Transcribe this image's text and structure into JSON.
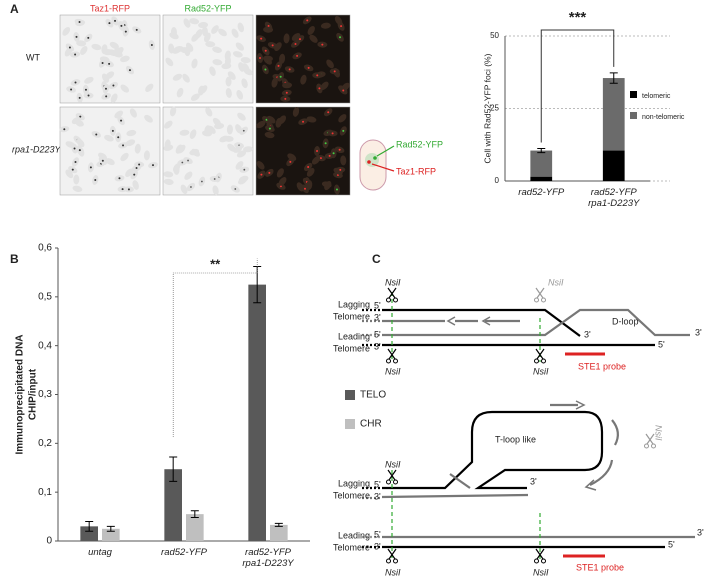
{
  "figure": {
    "panel_labels": [
      "A",
      "B",
      "C"
    ]
  },
  "microscopy": {
    "columns": [
      "Taz1-RFP",
      "Rad52-YFP"
    ],
    "rows": [
      "WT",
      "rpa1-D223Y"
    ],
    "cell_labels": [
      "Rad52-YFP",
      "Taz1-RFP"
    ]
  },
  "chart_data": [
    {
      "type": "bar",
      "stacked": true,
      "ylabel": "Cell with Rad52-YFP foci (%)",
      "categories": [
        "rad52-YFP",
        "rad52-YFP\nrpa1-D223Y"
      ],
      "series": [
        {
          "name": "telomeric",
          "color": "#000000",
          "values": [
            1.5,
            10.5
          ]
        },
        {
          "name": "non-telomeric",
          "color": "#6b6b6b",
          "values": [
            9,
            25
          ],
          "errors": [
            0.7,
            1.8
          ]
        }
      ],
      "ylim": [
        0,
        50
      ],
      "yticks": [
        0,
        25,
        50
      ],
      "grid": true,
      "legend": "right",
      "annotations": [
        "***"
      ]
    },
    {
      "type": "bar",
      "stacked": false,
      "ylabel": [
        "Immunoprecipitated DNA",
        "CHIP/input"
      ],
      "categories": [
        "untag",
        "rad52-YFP",
        "rad52-YFP\nrpa1-D223Y"
      ],
      "series": [
        {
          "name": "TELO",
          "color": "#595959",
          "values": [
            0.03,
            0.147,
            0.525
          ],
          "errors": [
            0.01,
            0.025,
            0.037
          ]
        },
        {
          "name": "CHR",
          "color": "#bfbfbf",
          "values": [
            0.025,
            0.055,
            0.033
          ],
          "errors": [
            0.005,
            0.007,
            0.003
          ]
        }
      ],
      "ylim": [
        0,
        0.6
      ],
      "yticks": [
        0,
        {
          "value": 0.1,
          "label": "0,1"
        },
        {
          "value": 0.2,
          "label": "0,2"
        },
        {
          "value": 0.3,
          "label": "0,3"
        },
        {
          "value": 0.4,
          "label": "0,4"
        },
        {
          "value": 0.5,
          "label": "0,5"
        },
        {
          "value": 0.6,
          "label": "0,6"
        }
      ],
      "grid": false,
      "legend": "right",
      "annotations": [
        "**"
      ]
    }
  ],
  "diagram": {
    "texts": [
      "NsiI",
      "NsiI",
      "Lagging",
      "Telomere",
      "5'",
      "3'",
      "D-loop",
      "Leading",
      "Telomere",
      "5'",
      "3'",
      "3'",
      "3'",
      "5'",
      "NsiI",
      "NsiI",
      "STE1 probe",
      "T-loop like",
      "NsiI",
      "NsiI",
      "Lagging",
      "Telomere",
      "5'",
      "3'",
      "3'",
      "Leading",
      "Telomere",
      "5'",
      "3'",
      "3'",
      "5'",
      "NsiI",
      "NsiI",
      "STE1 probe"
    ]
  }
}
